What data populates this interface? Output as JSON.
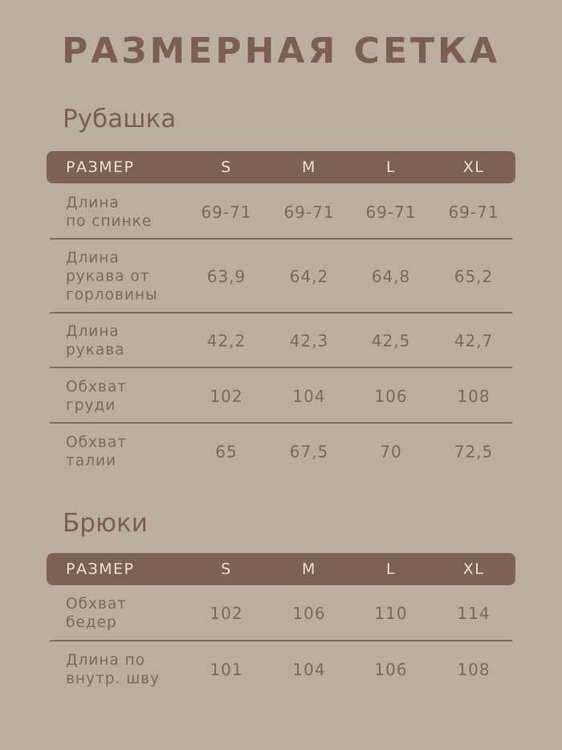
{
  "title": "РАЗМЕРНАЯ СЕТКА",
  "colors": {
    "background": "#bcae9f",
    "header": "#7e6155",
    "text": "#7a695d"
  },
  "tables": [
    {
      "name": "Рубашка",
      "header": [
        "РАЗМЕР",
        "S",
        "M",
        "L",
        "XL"
      ],
      "rows": [
        {
          "label": "Длина\nпо спинке",
          "values": [
            "69-71",
            "69-71",
            "69-71",
            "69-71"
          ]
        },
        {
          "label": "Длина\nрукава от\nгорловины",
          "values": [
            "63,9",
            "64,2",
            "64,8",
            "65,2"
          ]
        },
        {
          "label": "Длина\nрукава",
          "values": [
            "42,2",
            "42,3",
            "42,5",
            "42,7"
          ]
        },
        {
          "label": "Обхват\nгруди",
          "values": [
            "102",
            "104",
            "106",
            "108"
          ]
        },
        {
          "label": "Обхват\nталии",
          "values": [
            "65",
            "67,5",
            "70",
            "72,5"
          ]
        }
      ]
    },
    {
      "name": "Брюки",
      "header": [
        "РАЗМЕР",
        "S",
        "M",
        "L",
        "XL"
      ],
      "rows": [
        {
          "label": "Обхват\nбедер",
          "values": [
            "102",
            "106",
            "110",
            "114"
          ]
        },
        {
          "label": "Длина по\nвнутр. шву",
          "values": [
            "101",
            "104",
            "106",
            "108"
          ]
        }
      ]
    }
  ]
}
